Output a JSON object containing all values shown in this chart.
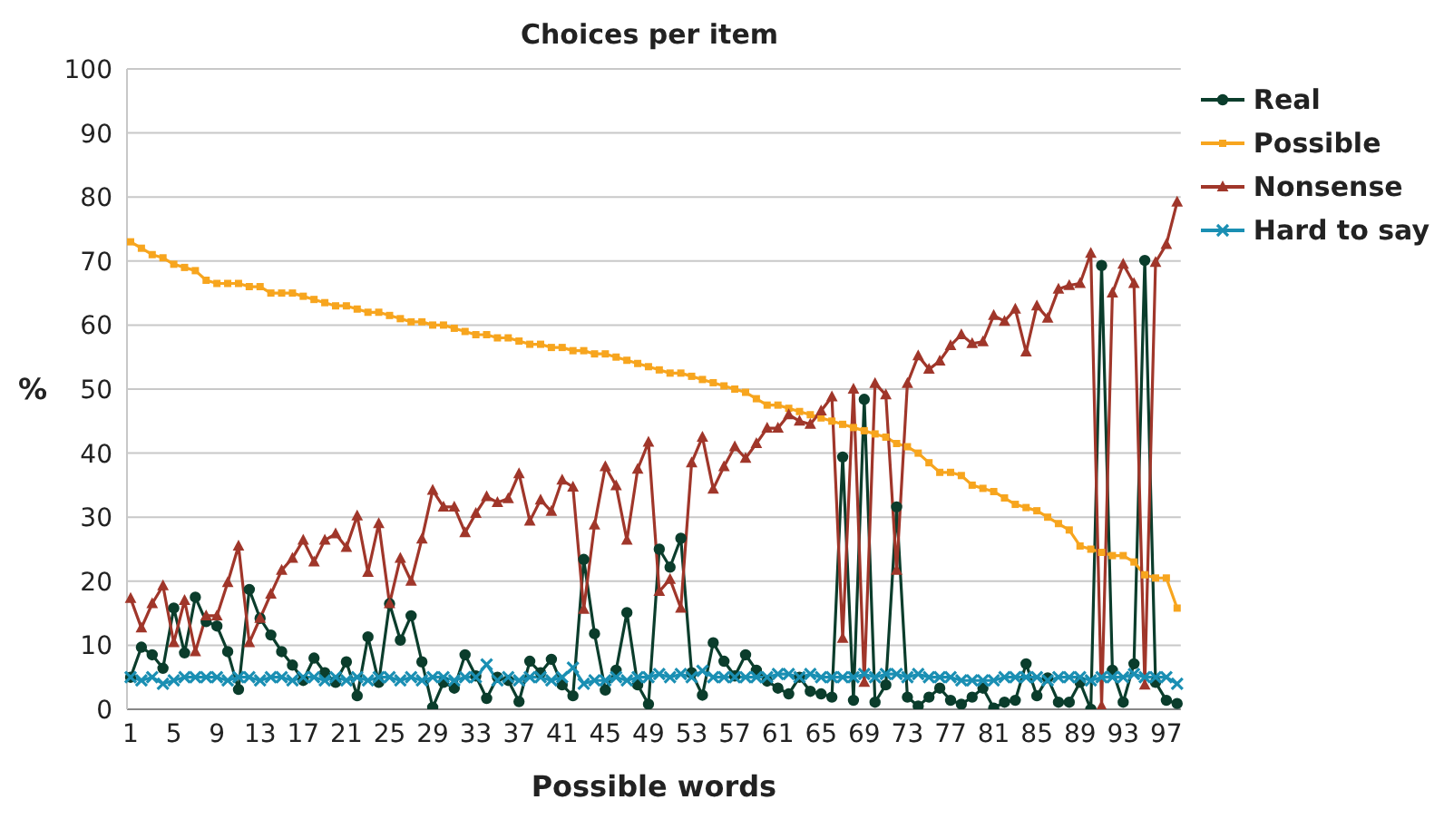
{
  "chart_data": {
    "type": "line",
    "title": "Choices per item",
    "xlabel": "Possible words",
    "ylabel": "%",
    "categories": [
      "1",
      null,
      null,
      null,
      "5",
      null,
      null,
      null,
      "9",
      null,
      null,
      null,
      "13",
      null,
      null,
      null,
      "17",
      null,
      null,
      null,
      "21",
      null,
      null,
      null,
      "25",
      null,
      null,
      null,
      "29",
      null,
      null,
      null,
      "33",
      null,
      null,
      null,
      "37",
      null,
      null,
      null,
      "41",
      null,
      null,
      null,
      "45",
      null,
      null,
      null,
      "49",
      null,
      null,
      null,
      "53",
      null,
      null,
      null,
      "57",
      null,
      null,
      null,
      "61",
      null,
      null,
      null,
      "65",
      null,
      null,
      null,
      "69",
      null,
      null,
      null,
      "73",
      null,
      null,
      null,
      "77",
      null,
      null,
      null,
      "81",
      null,
      null,
      null,
      "85",
      null,
      null,
      null,
      "89",
      null,
      null,
      null,
      "93",
      null,
      null,
      null,
      "97",
      null
    ],
    "ylim": [
      0,
      100
    ],
    "yticks": [
      0,
      10,
      20,
      30,
      40,
      50,
      60,
      70,
      80,
      90,
      100
    ],
    "grid": "y",
    "legend": "right",
    "series": [
      {
        "name": "Real",
        "color": "#0b3d2c",
        "marker": "circle",
        "values": [
          5,
          9.7,
          8.5,
          6.4,
          15.8,
          8.8,
          17.5,
          13.7,
          13,
          9,
          3.1,
          18.7,
          14.2,
          11.6,
          9,
          6.9,
          4.5,
          8,
          5.7,
          4.2,
          7.4,
          2.1,
          11.3,
          4.2,
          16.5,
          10.8,
          14.6,
          7.4,
          0.3,
          4.2,
          3.3,
          8.5,
          5.2,
          1.7,
          5,
          4.5,
          1.2,
          7.5,
          5.7,
          7.8,
          3.8,
          2.1,
          23.4,
          11.8,
          3,
          6.1,
          15.1,
          3.8,
          0.8,
          25,
          22.2,
          26.7,
          5.7,
          2.2,
          10.4,
          7.5,
          5.2,
          8.5,
          6.1,
          4.4,
          3.3,
          2.4,
          5,
          2.8,
          2.4,
          1.9,
          39.4,
          1.4,
          48.4,
          1.1,
          3.8,
          31.6,
          1.9,
          0.5,
          1.9,
          3.3,
          1.4,
          0.8,
          1.9,
          3.3,
          0.2,
          1.1,
          1.4,
          7.1,
          2.1,
          4.9,
          1.1,
          1.1,
          4.2,
          0,
          69.3,
          6.1,
          1.1,
          7.1,
          70.1,
          4.2,
          1.4,
          0.9
        ]
      },
      {
        "name": "Possible",
        "color": "#f7a51e",
        "marker": "square",
        "values": [
          73,
          72,
          71,
          70.5,
          69.5,
          69,
          68.5,
          67,
          66.5,
          66.5,
          66.5,
          66,
          66,
          65,
          65,
          65,
          64.5,
          64,
          63.5,
          63,
          63,
          62.5,
          62,
          62,
          61.5,
          61,
          60.5,
          60.5,
          60,
          60,
          59.5,
          59,
          58.5,
          58.5,
          58,
          58,
          57.5,
          57,
          57,
          56.5,
          56.5,
          56,
          56,
          55.5,
          55.5,
          55,
          54.5,
          54,
          53.5,
          53,
          52.5,
          52.5,
          52,
          51.5,
          51,
          50.5,
          50,
          49.5,
          48.5,
          47.5,
          47.5,
          47,
          46.5,
          46,
          45.5,
          45,
          44.5,
          44,
          43.5,
          43,
          42.5,
          41.5,
          41,
          40,
          38.5,
          37,
          37,
          36.5,
          35,
          34.5,
          34,
          33,
          32,
          31.5,
          31,
          30,
          29,
          28,
          25.5,
          25,
          24.5,
          24,
          24,
          23,
          21,
          20.5,
          20.5,
          15.8
        ]
      },
      {
        "name": "Nonsense",
        "color": "#a0362a",
        "marker": "triangle",
        "values": [
          17.3,
          12.7,
          16.5,
          19.3,
          10.4,
          17,
          9,
          14.6,
          14.6,
          19.8,
          25.5,
          10.4,
          14.2,
          18,
          21.7,
          23.6,
          26.4,
          23,
          26.4,
          27.4,
          25.3,
          30.2,
          21.4,
          29,
          16.5,
          23.6,
          20,
          26.6,
          34.2,
          31.6,
          31.6,
          27.6,
          30.6,
          33.2,
          32.3,
          32.9,
          36.8,
          29.4,
          32.7,
          30.9,
          35.8,
          34.7,
          15.6,
          28.8,
          37.9,
          34.9,
          26.4,
          37.5,
          41.7,
          18.4,
          20.3,
          15.8,
          38.5,
          42.5,
          34.4,
          37.9,
          41,
          39.2,
          41.5,
          43.9,
          43.9,
          46,
          45,
          44.5,
          46.6,
          48.8,
          11.1,
          50,
          4.2,
          50.9,
          49.1,
          21.7,
          50.9,
          55.2,
          53.1,
          54.4,
          56.8,
          58.5,
          57.1,
          57.4,
          61.5,
          60.6,
          62.5,
          55.8,
          63,
          61.1,
          65.6,
          66.2,
          66.5,
          71.2,
          0.5,
          65,
          69.5,
          66.5,
          3.8,
          69.8,
          72.6,
          79.2
        ]
      },
      {
        "name": "Hard to say",
        "color": "#1a8fb3",
        "marker": "cross",
        "values": [
          5,
          4.5,
          5,
          4,
          4.5,
          5,
          5,
          5,
          5,
          4.5,
          5,
          5,
          4.5,
          5,
          5,
          4.5,
          5,
          5,
          4.5,
          5,
          4.5,
          5,
          4.5,
          5,
          5,
          4.5,
          5,
          4.5,
          5,
          5,
          4.5,
          5,
          5,
          7,
          4.5,
          5,
          4.5,
          5,
          5,
          4.5,
          5,
          6.5,
          4,
          4.5,
          4.5,
          5,
          4.5,
          5,
          5,
          5.5,
          5,
          5.5,
          5,
          6,
          5,
          5,
          5,
          5,
          5,
          5,
          5.5,
          5.5,
          5,
          5.5,
          5,
          5,
          5,
          5,
          5.5,
          5,
          5.5,
          5.5,
          5,
          5.5,
          5,
          5,
          5,
          4.5,
          4.5,
          4.5,
          4.5,
          5,
          5,
          5,
          5,
          4.5,
          5,
          5,
          5,
          4.5,
          5,
          5,
          5,
          5.5,
          5,
          5,
          5,
          4
        ]
      }
    ]
  }
}
